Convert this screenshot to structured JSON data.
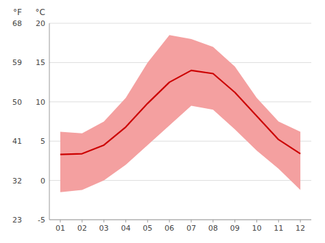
{
  "chart_data": {
    "type": "line",
    "categories": [
      "01",
      "02",
      "03",
      "04",
      "05",
      "06",
      "07",
      "08",
      "09",
      "10",
      "11",
      "12"
    ],
    "series": [
      {
        "type": "band",
        "color": "#f4a0a0",
        "low": [
          -1.5,
          -1.2,
          0.0,
          2.0,
          4.5,
          7.0,
          9.5,
          9.0,
          6.5,
          3.8,
          1.5,
          -1.2
        ],
        "high": [
          6.2,
          6.0,
          7.5,
          10.5,
          15.0,
          18.5,
          18.0,
          17.0,
          14.5,
          10.5,
          7.5,
          6.2
        ]
      },
      {
        "type": "line",
        "color": "#cc0000",
        "values": [
          3.3,
          3.4,
          4.5,
          6.8,
          9.8,
          12.5,
          14.0,
          13.6,
          11.2,
          8.2,
          5.2,
          3.4
        ]
      }
    ],
    "ylim": [
      -5,
      20
    ],
    "yticks": [
      -5,
      0,
      5,
      10,
      15,
      20
    ],
    "y2lim": [
      23,
      68
    ],
    "y2ticks": [
      23,
      32,
      41,
      50,
      59,
      68
    ],
    "y_label": "°C",
    "y2_label": "°F",
    "grid": true
  }
}
